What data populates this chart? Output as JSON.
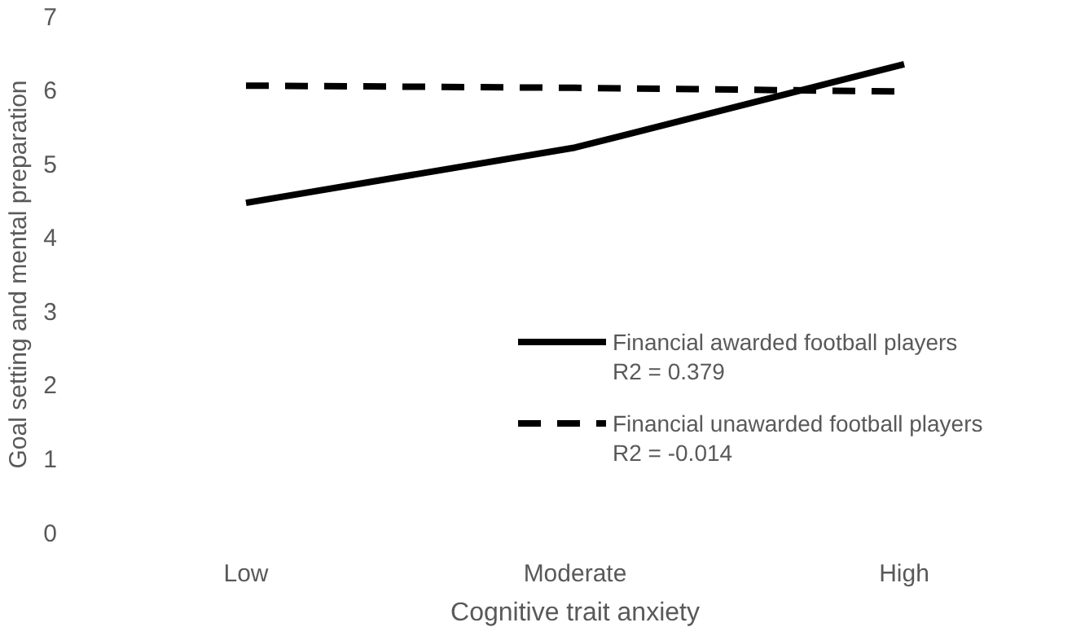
{
  "chart_data": {
    "type": "line",
    "xlabel": "Cognitive trait anxiety",
    "ylabel": "Goal setting and mental preparation",
    "categories": [
      "Low",
      "Moderate",
      "High"
    ],
    "series": [
      {
        "name": "Financial awarded football players\nR2 = 0.379",
        "color": "#000000",
        "values": [
          4.47,
          5.22,
          6.35
        ],
        "line_style": "solid"
      },
      {
        "name": "Financial unawarded football players\nR2 = -0.014",
        "color": "#000000",
        "values": [
          6.06,
          6.03,
          5.98
        ],
        "line_style": "dashed"
      }
    ],
    "ylim": [
      0,
      7
    ],
    "yticks": [
      0,
      1,
      2,
      3,
      4,
      5,
      6,
      7
    ],
    "grid": false,
    "legend": "right",
    "marker": "none"
  }
}
